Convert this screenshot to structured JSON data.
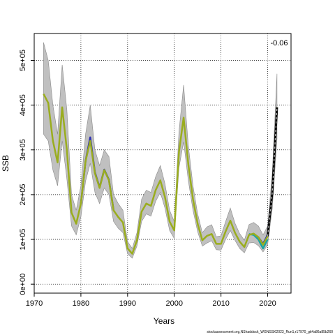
{
  "chart_data": {
    "type": "line",
    "title": "",
    "xlabel": "Years",
    "ylabel": "SSB",
    "xlim": [
      1970,
      2025
    ],
    "ylim": [
      -20000,
      560000
    ],
    "x_ticks": [
      1970,
      1980,
      1990,
      2000,
      2010,
      2020
    ],
    "x_tick_labels": [
      "1970",
      "1980",
      "1990",
      "2000",
      "2010",
      "2020"
    ],
    "y_ticks": [
      0,
      100000,
      200000,
      300000,
      400000,
      500000
    ],
    "y_tick_labels": [
      "0e+00",
      "1e+05",
      "2e+05",
      "3e+05",
      "4e+05",
      "5e+05"
    ],
    "grid": true,
    "annotation": "-0.06",
    "footer": "stockassessment.org,NShaddock_WGNSSK2023_Run1,r17970_git4a86a85b260",
    "colors": {
      "band": "#c0c0c0",
      "main_series": "#9aad1e",
      "retro_blue": "#2d2fb4",
      "retro_teal": "#1ba3a3",
      "last_segment": "#000000"
    },
    "series": [
      {
        "years": [
          1972,
          1973,
          1974,
          1975,
          1976,
          1977,
          1978,
          1979,
          1980,
          1981,
          1982,
          1983,
          1984,
          1985,
          1986,
          1987,
          1988,
          1989,
          1990,
          1991,
          1992,
          1993,
          1994,
          1995,
          1996,
          1997,
          1998,
          1999,
          2000,
          2001,
          2002,
          2003,
          2004,
          2005,
          2006,
          2007,
          2008,
          2009,
          2010,
          2011,
          2012,
          2013,
          2014,
          2015,
          2016,
          2017,
          2018,
          2019,
          2020,
          2021,
          2022
        ],
        "values": [
          425000,
          405000,
          320000,
          272000,
          395000,
          300000,
          160000,
          135000,
          180000,
          275000,
          320000,
          248000,
          215000,
          255000,
          232000,
          165000,
          150000,
          138000,
          80000,
          68000,
          98000,
          162000,
          180000,
          175000,
          210000,
          232000,
          195000,
          140000,
          120000,
          295000,
          372000,
          268000,
          190000,
          135000,
          98000,
          108000,
          112000,
          90000,
          90000,
          118000,
          142000,
          115000,
          95000,
          83000,
          110000,
          113000,
          105000,
          88000,
          107000,
          205000,
          395000
        ],
        "lower": [
          335000,
          320000,
          255000,
          220000,
          320000,
          235000,
          130000,
          110000,
          150000,
          230000,
          270000,
          205000,
          180000,
          215000,
          200000,
          140000,
          125000,
          115000,
          68000,
          58000,
          85000,
          140000,
          157000,
          152000,
          185000,
          205000,
          170000,
          120000,
          102000,
          260000,
          318000,
          232000,
          165000,
          117000,
          85000,
          92000,
          97000,
          77000,
          76000,
          100000,
          120000,
          98000,
          80000,
          70000,
          92000,
          93000,
          86000,
          72000,
          88000,
          170000,
          325000
        ],
        "upper": [
          540000,
          500000,
          400000,
          335000,
          490000,
          390000,
          200000,
          165000,
          220000,
          335000,
          400000,
          300000,
          265000,
          300000,
          285000,
          200000,
          180000,
          165000,
          95000,
          80000,
          115000,
          190000,
          210000,
          205000,
          240000,
          265000,
          225000,
          165000,
          140000,
          340000,
          445000,
          310000,
          220000,
          157000,
          115000,
          128000,
          133000,
          106000,
          108000,
          140000,
          170000,
          136000,
          113000,
          98000,
          133000,
          138000,
          130000,
          110000,
          130000,
          250000,
          470000
        ]
      },
      {
        "name": "",
        "color": "#2d2fb4",
        "years": [
          1980,
          1981,
          1982,
          1983,
          1984,
          1985,
          1986,
          1987
        ],
        "values": [
          180000,
          275000,
          328000,
          250000,
          216000,
          256000,
          233000,
          166000
        ]
      },
      {
        "name": "",
        "color": "#1ba3a3",
        "years": [
          2016,
          2017,
          2018,
          2019,
          2020
        ],
        "values": [
          112000,
          110000,
          100000,
          80000,
          100000
        ]
      },
      {
        "name": "",
        "color": "#2d2fb4",
        "years": [
          2018,
          2019,
          2020,
          2021
        ],
        "values": [
          105000,
          90000,
          110000,
          205000
        ]
      },
      {
        "name": "",
        "color": "#000000",
        "years": [
          2020,
          2021,
          2022
        ],
        "values": [
          107000,
          205000,
          395000
        ]
      }
    ]
  }
}
